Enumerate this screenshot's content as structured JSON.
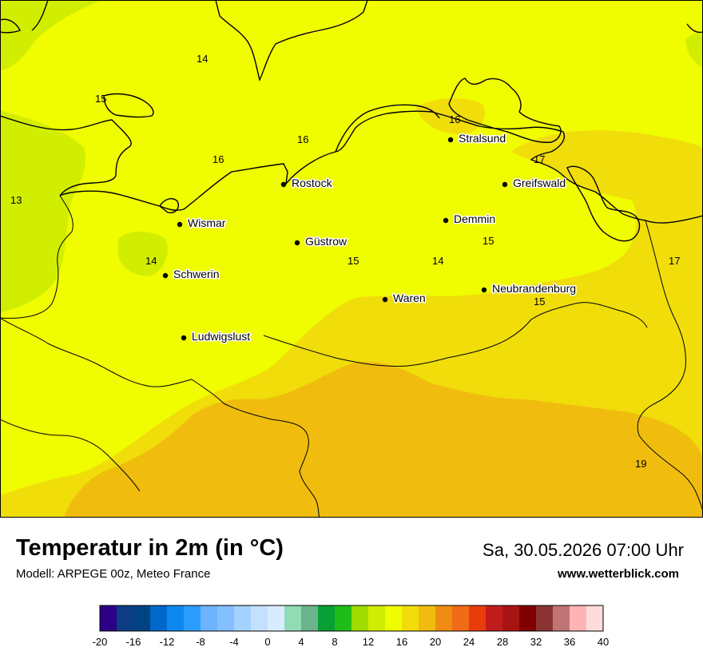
{
  "map": {
    "cities": [
      {
        "name": "Stralsund"
      },
      {
        "name": "Rostock"
      },
      {
        "name": "Greifswald"
      },
      {
        "name": "Wismar"
      },
      {
        "name": "Demmin"
      },
      {
        "name": "Güstrow"
      },
      {
        "name": "Schwerin"
      },
      {
        "name": "Neubrandenburg"
      },
      {
        "name": "Waren"
      },
      {
        "name": "Ludwigslust"
      }
    ],
    "isotherm_labels": [
      "14",
      "15",
      "16",
      "16",
      "16",
      "13",
      "14",
      "15",
      "14",
      "15",
      "17",
      "17",
      "15",
      "19"
    ],
    "colors": {
      "t13": "#d2ee00",
      "t15": "#f0fc00",
      "t17": "#f0dd0a",
      "t19": "#f0bd0e"
    }
  },
  "caption": {
    "title": "Temperatur in 2m (in °C)",
    "model": "Modell: ARPEGE 00z, Meteo France",
    "datetime": "Sa, 30.05.2026 07:00 Uhr",
    "website": "www.wetterblick.com"
  },
  "legend": {
    "ticks": [
      "-20",
      "-16",
      "-12",
      "-8",
      "-4",
      "0",
      "4",
      "8",
      "12",
      "16",
      "20",
      "24",
      "28",
      "32",
      "36",
      "40"
    ],
    "colors": [
      "#2c0086",
      "#0b3c84",
      "#004282",
      "#0068c8",
      "#0c88f0",
      "#2c9cff",
      "#6cb4ff",
      "#84c0ff",
      "#a4d2ff",
      "#c4e0ff",
      "#d8ecff",
      "#90dcb4",
      "#6cb48c",
      "#08a034",
      "#20bc18",
      "#a0dc00",
      "#d0ec00",
      "#f0fc00",
      "#f0dd0a",
      "#f0bd0e",
      "#f08c14",
      "#f06c18",
      "#e83c0c",
      "#c01c1c",
      "#a81414",
      "#800000",
      "#8c3434",
      "#c07474",
      "#ffb4b4",
      "#ffdcdc"
    ]
  }
}
